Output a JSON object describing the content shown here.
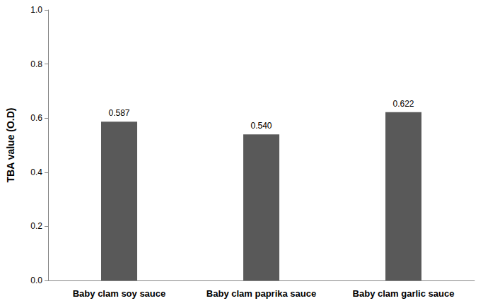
{
  "chart_data": {
    "type": "bar",
    "y_label": "TBA value (O.D)",
    "categories": [
      "Baby clam soy sauce",
      "Baby clam paprika sauce",
      "Baby clam garlic sauce"
    ],
    "values": [
      0.587,
      0.54,
      0.622
    ],
    "value_labels": [
      "0.587",
      "0.540",
      "0.622"
    ],
    "color": "#595959",
    "ylim": [
      0,
      1
    ],
    "yticks": [
      {
        "value": 0,
        "label": "0.0"
      },
      0.2,
      0.4,
      0.6,
      0.8,
      {
        "value": 1,
        "label": "1.0"
      }
    ],
    "grid": false,
    "data_labels": true
  }
}
